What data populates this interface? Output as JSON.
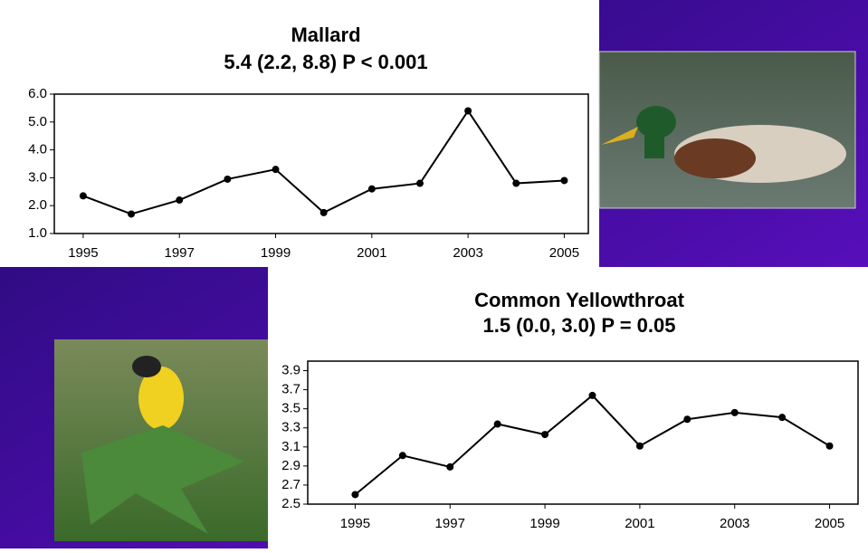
{
  "chart_data": [
    {
      "type": "line",
      "title": "Mallard",
      "subtitle": "5.4 (2.2, 8.8) P < 0.001",
      "x": [
        1995,
        1996,
        1997,
        1998,
        1999,
        2000,
        2001,
        2002,
        2003,
        2004,
        2005
      ],
      "values": [
        2.35,
        1.7,
        2.2,
        2.95,
        3.3,
        1.75,
        2.6,
        2.8,
        5.4,
        2.8,
        2.9
      ],
      "color": "#000000",
      "grid": false,
      "xlim": [
        1994.4,
        2005.5
      ],
      "xticks": [
        1995,
        1997,
        1999,
        2001,
        2003,
        2005
      ],
      "ylim": [
        1,
        6
      ],
      "yticks": [
        {
          "value": 1,
          "label": "1.0"
        },
        {
          "value": 2,
          "label": "2.0"
        },
        {
          "value": 3,
          "label": "3.0"
        },
        {
          "value": 4,
          "label": "4.0"
        },
        {
          "value": 5,
          "label": "5.0"
        },
        {
          "value": 6,
          "label": "6.0"
        }
      ]
    },
    {
      "type": "line",
      "title": "Common Yellowthroat",
      "subtitle": "1.5 (0.0, 3.0) P = 0.05",
      "x": [
        1995,
        1996,
        1997,
        1998,
        1999,
        2000,
        2001,
        2002,
        2003,
        2004,
        2005
      ],
      "values": [
        2.6,
        3.01,
        2.89,
        3.34,
        3.23,
        3.64,
        3.11,
        3.39,
        3.46,
        3.41,
        3.11
      ],
      "color": "#000000",
      "grid": false,
      "xlim": [
        1994,
        2005.6
      ],
      "xticks": [
        1995,
        1997,
        1999,
        2001,
        2003,
        2005
      ],
      "ylim": [
        2.5,
        4.0
      ],
      "yticks": [
        {
          "value": 2.5,
          "label": "2.5"
        },
        {
          "value": 2.7,
          "label": "2.7"
        },
        {
          "value": 2.9,
          "label": "2.9"
        },
        {
          "value": 3.1,
          "label": "3.1"
        },
        {
          "value": 3.3,
          "label": "3.3"
        },
        {
          "value": 3.5,
          "label": "3.5"
        },
        {
          "value": 3.7,
          "label": "3.7"
        },
        {
          "value": 3.9,
          "label": "3.9"
        }
      ]
    }
  ]
}
